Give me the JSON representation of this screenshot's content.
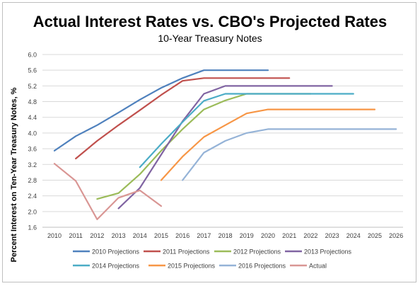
{
  "chart_data": {
    "type": "line",
    "title": "Actual Interest Rates vs. CBO's Projected Rates",
    "subtitle": "10-Year Treasury Notes",
    "xlabel": "",
    "ylabel": "Percent Interest on Ten-Year Treasury Notes, %",
    "xlim": [
      2010,
      2026
    ],
    "ylim": [
      1.6,
      6.0
    ],
    "x_ticks": [
      "2010",
      "2011",
      "2012",
      "2013",
      "2014",
      "2015",
      "2016",
      "2017",
      "2018",
      "2019",
      "2020",
      "2021",
      "2022",
      "2023",
      "2024",
      "2025",
      "2026"
    ],
    "y_ticks": [
      "1.6",
      "2.0",
      "2.4",
      "2.8",
      "3.2",
      "3.6",
      "4.0",
      "4.4",
      "4.8",
      "5.2",
      "5.6",
      "6.0"
    ],
    "grid": "horizontal",
    "legend_position": "bottom",
    "series": [
      {
        "name": "2010 Projections",
        "color": "#4f81bd",
        "points": [
          [
            2010,
            3.55
          ],
          [
            2011,
            3.92
          ],
          [
            2012,
            4.2
          ],
          [
            2013,
            4.52
          ],
          [
            2014,
            4.85
          ],
          [
            2015,
            5.15
          ],
          [
            2016,
            5.4
          ],
          [
            2017,
            5.6
          ],
          [
            2018,
            5.6
          ],
          [
            2019,
            5.6
          ],
          [
            2020,
            5.6
          ]
        ]
      },
      {
        "name": "2011 Projections",
        "color": "#c0504d",
        "points": [
          [
            2011,
            3.35
          ],
          [
            2012,
            3.8
          ],
          [
            2013,
            4.2
          ],
          [
            2014,
            4.58
          ],
          [
            2015,
            4.97
          ],
          [
            2016,
            5.33
          ],
          [
            2017,
            5.4
          ],
          [
            2018,
            5.4
          ],
          [
            2019,
            5.4
          ],
          [
            2020,
            5.4
          ],
          [
            2021,
            5.4
          ]
        ]
      },
      {
        "name": "2012 Projections",
        "color": "#9bbb59",
        "points": [
          [
            2012,
            2.32
          ],
          [
            2013,
            2.47
          ],
          [
            2014,
            2.95
          ],
          [
            2015,
            3.55
          ],
          [
            2016,
            4.1
          ],
          [
            2017,
            4.6
          ],
          [
            2018,
            4.83
          ],
          [
            2019,
            5.0
          ],
          [
            2020,
            5.0
          ],
          [
            2021,
            5.0
          ],
          [
            2022,
            5.0
          ]
        ]
      },
      {
        "name": "2013 Projections",
        "color": "#8064a2",
        "points": [
          [
            2013,
            2.08
          ],
          [
            2014,
            2.6
          ],
          [
            2015,
            3.45
          ],
          [
            2016,
            4.3
          ],
          [
            2017,
            5.0
          ],
          [
            2018,
            5.2
          ],
          [
            2019,
            5.2
          ],
          [
            2020,
            5.2
          ],
          [
            2021,
            5.2
          ],
          [
            2022,
            5.2
          ],
          [
            2023,
            5.2
          ]
        ]
      },
      {
        "name": "2014 Projections",
        "color": "#4bacc6",
        "points": [
          [
            2014,
            3.13
          ],
          [
            2015,
            3.72
          ],
          [
            2016,
            4.28
          ],
          [
            2017,
            4.82
          ],
          [
            2018,
            5.0
          ],
          [
            2019,
            5.0
          ],
          [
            2020,
            5.0
          ],
          [
            2021,
            5.0
          ],
          [
            2022,
            5.0
          ],
          [
            2023,
            5.0
          ],
          [
            2024,
            5.0
          ]
        ]
      },
      {
        "name": "2015 Projections",
        "color": "#f79646",
        "points": [
          [
            2015,
            2.8
          ],
          [
            2016,
            3.4
          ],
          [
            2017,
            3.9
          ],
          [
            2018,
            4.2
          ],
          [
            2019,
            4.5
          ],
          [
            2020,
            4.6
          ],
          [
            2021,
            4.6
          ],
          [
            2022,
            4.6
          ],
          [
            2023,
            4.6
          ],
          [
            2024,
            4.6
          ],
          [
            2025,
            4.6
          ]
        ]
      },
      {
        "name": "2016 Projections",
        "color": "#95b3d7",
        "points": [
          [
            2016,
            2.8
          ],
          [
            2017,
            3.5
          ],
          [
            2018,
            3.8
          ],
          [
            2019,
            4.0
          ],
          [
            2020,
            4.1
          ],
          [
            2021,
            4.1
          ],
          [
            2022,
            4.1
          ],
          [
            2023,
            4.1
          ],
          [
            2024,
            4.1
          ],
          [
            2025,
            4.1
          ],
          [
            2026,
            4.1
          ]
        ]
      },
      {
        "name": "Actual",
        "color": "#d99694",
        "points": [
          [
            2010,
            3.22
          ],
          [
            2011,
            2.78
          ],
          [
            2012,
            1.8
          ],
          [
            2013,
            2.35
          ],
          [
            2014,
            2.54
          ],
          [
            2015,
            2.14
          ]
        ]
      }
    ]
  }
}
